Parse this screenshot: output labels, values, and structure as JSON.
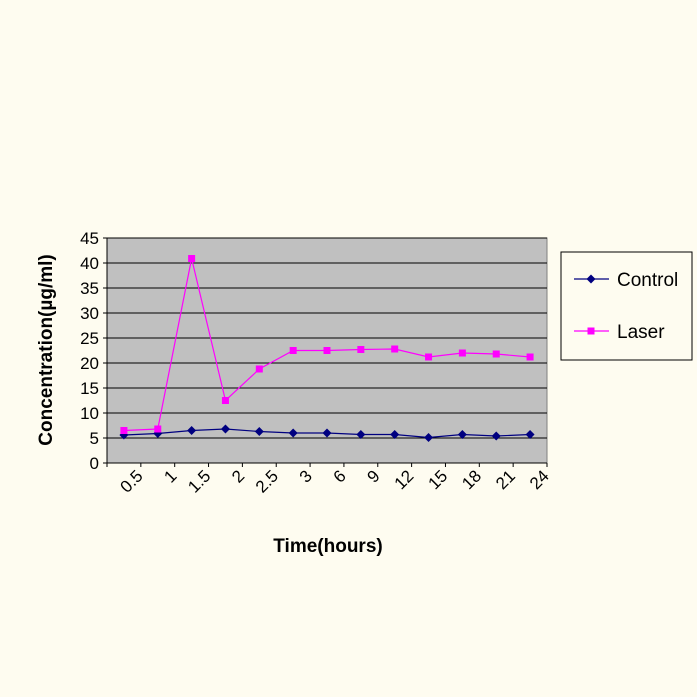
{
  "chart_data": {
    "type": "line",
    "title": "",
    "xlabel": "Time(hours)",
    "ylabel": "Concentration(µg/ml)",
    "categories": [
      "0.5",
      "1",
      "1.5",
      "2",
      "2.5",
      "3",
      "6",
      "9",
      "12",
      "15",
      "18",
      "21",
      "24"
    ],
    "ylim": [
      0,
      45
    ],
    "yticks": [
      0,
      5,
      10,
      15,
      20,
      25,
      30,
      35,
      40,
      45
    ],
    "grid": true,
    "legend_position": "right",
    "series": [
      {
        "name": "Control",
        "color": "#000080",
        "marker": "diamond",
        "values": [
          5.6,
          5.9,
          6.5,
          6.8,
          6.3,
          6.0,
          6.0,
          5.7,
          5.7,
          5.1,
          5.7,
          5.4,
          5.7
        ]
      },
      {
        "name": "Laser",
        "color": "#ff00ff",
        "marker": "square",
        "values": [
          6.5,
          6.8,
          40.9,
          12.5,
          18.8,
          22.5,
          22.5,
          22.7,
          22.8,
          21.2,
          22.0,
          21.8,
          21.2
        ]
      }
    ],
    "colors": {
      "plot_background": "#c0c0c0",
      "gridline": "#000000",
      "page_background": "#fefcf0"
    }
  }
}
